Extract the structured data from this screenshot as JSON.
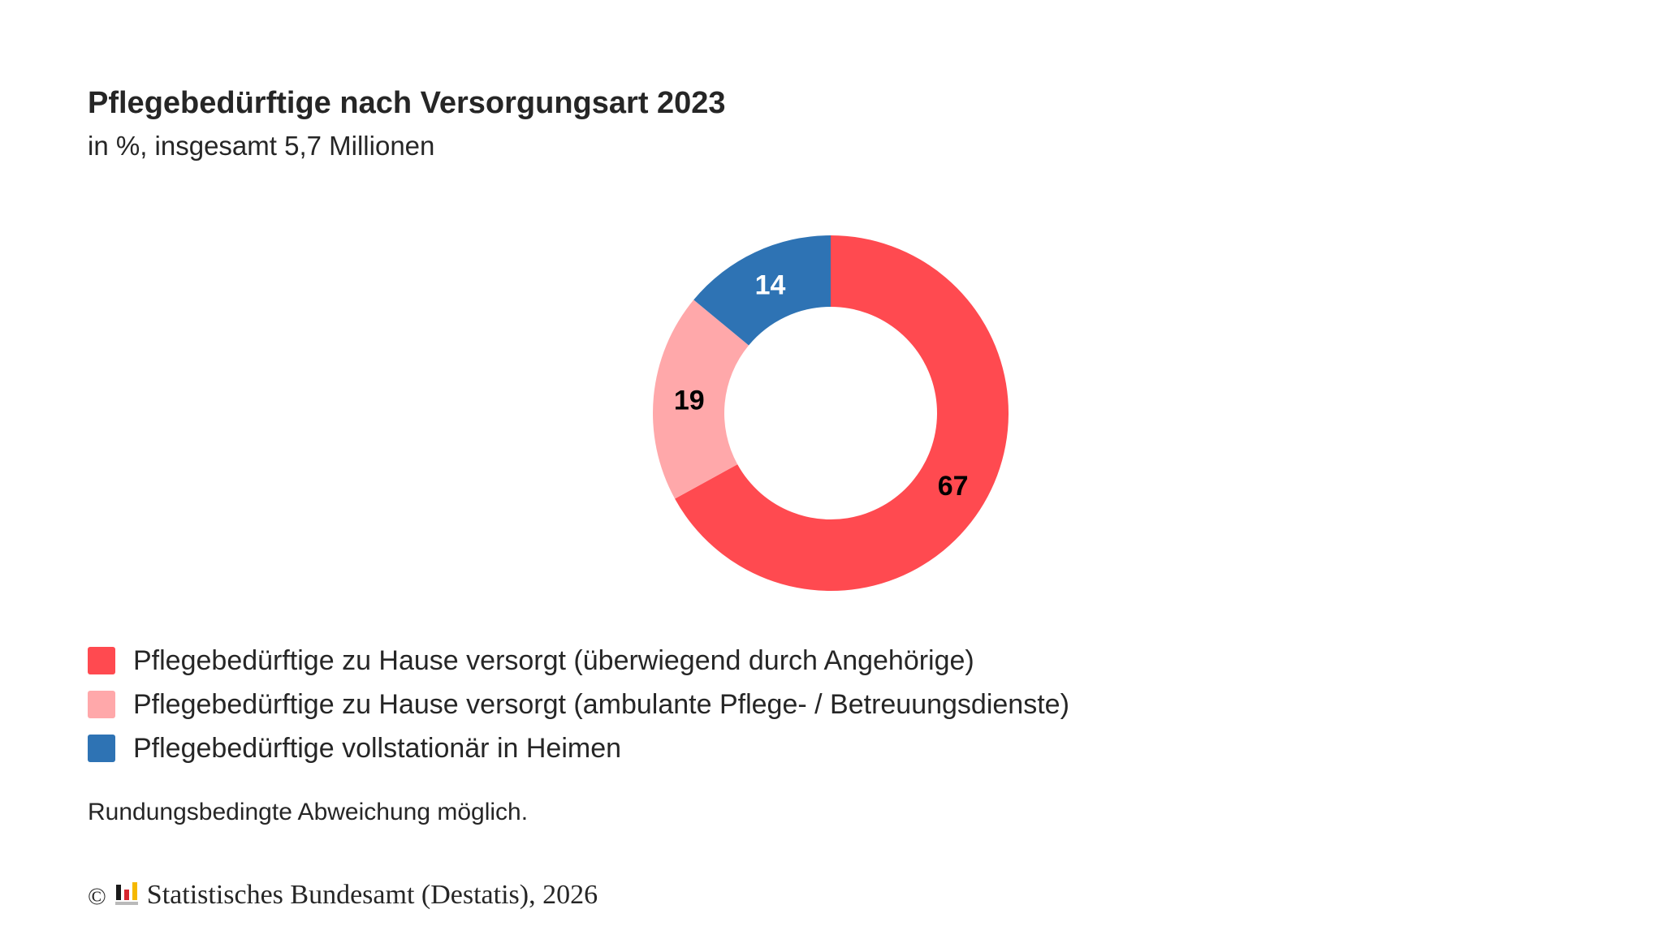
{
  "header": {
    "title": "Pflegebedürftige nach Versorgungsart 2023",
    "subtitle": "in %, insgesamt 5,7 Millionen"
  },
  "chart_data": {
    "type": "pie",
    "variant": "donut",
    "title": "Pflegebedürftige nach Versorgungsart 2023",
    "subtitle": "in %, insgesamt 5,7 Millionen",
    "unit": "%",
    "total": "5,7 Millionen",
    "categories": [
      "Pflegebedürftige zu Hause versorgt (überwiegend durch Angehörige)",
      "Pflegebedürftige zu Hause versorgt (ambulante Pflege- / Betreuungsdienste)",
      "Pflegebedürftige vollstationär in Heimen"
    ],
    "values": [
      67,
      19,
      14
    ],
    "colors": [
      "#FF4A50",
      "#FFA8AA",
      "#2E73B4"
    ],
    "label_colors": [
      "#000000",
      "#000000",
      "#ffffff"
    ],
    "legend_position": "bottom",
    "start_angle": "top, clockwise"
  },
  "legend": {
    "items": [
      {
        "label": "Pflegebedürftige zu Hause versorgt (überwiegend durch Angehörige)",
        "color": "#FF4A50"
      },
      {
        "label": "Pflegebedürftige zu Hause versorgt (ambulante Pflege- / Betreuungsdienste)",
        "color": "#FFA8AA"
      },
      {
        "label": "Pflegebedürftige vollstationär in Heimen",
        "color": "#2E73B4"
      }
    ]
  },
  "note": "Rundungsbedingte Abweichung möglich.",
  "footer": {
    "copyright_symbol": "©",
    "logo_icon": "destatis-logo-icon",
    "source": "Statistisches Bundesamt (Destatis), 2026"
  }
}
